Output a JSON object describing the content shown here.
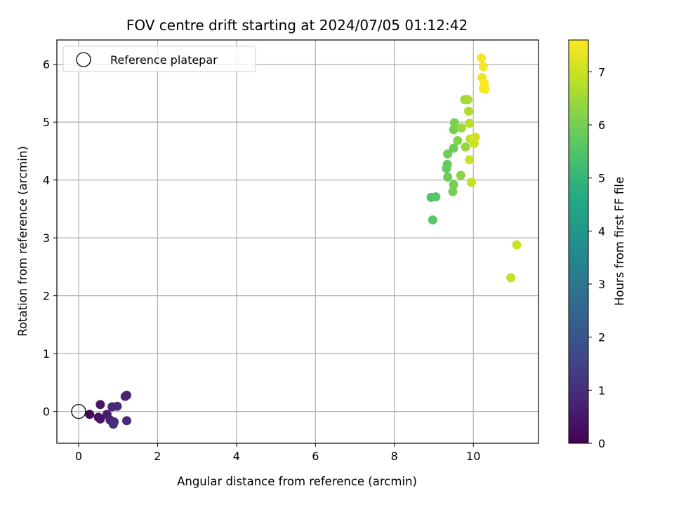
{
  "chart_data": {
    "type": "scatter",
    "title": "FOV centre drift starting at 2024/07/05 01:12:42",
    "xlabel": "Angular distance from reference (arcmin)",
    "ylabel": "Rotation from reference (arcmin)",
    "xlim": [
      -0.55,
      11.65
    ],
    "ylim": [
      -0.55,
      6.42
    ],
    "xticks": [
      0,
      2,
      4,
      6,
      8,
      10
    ],
    "yticks": [
      0,
      1,
      2,
      3,
      4,
      5,
      6
    ],
    "grid": true,
    "legend": {
      "position": "top-left",
      "entries": [
        "Reference platepar"
      ]
    },
    "reference_point": {
      "x": 0,
      "y": 0
    },
    "colorbar": {
      "label": "Hours from first FF file",
      "min": 0,
      "max": 7.6,
      "ticks": [
        0,
        1,
        2,
        3,
        4,
        5,
        6,
        7
      ],
      "colormap": "viridis"
    },
    "points": [
      {
        "x": 0.28,
        "y": -0.05,
        "h": 0.1
      },
      {
        "x": 0.5,
        "y": -0.1,
        "h": 0.3
      },
      {
        "x": 0.55,
        "y": -0.13,
        "h": 0.4
      },
      {
        "x": 0.55,
        "y": 0.12,
        "h": 0.5
      },
      {
        "x": 0.72,
        "y": -0.05,
        "h": 0.6
      },
      {
        "x": 0.8,
        "y": -0.15,
        "h": 0.7
      },
      {
        "x": 0.85,
        "y": 0.08,
        "h": 0.8
      },
      {
        "x": 0.88,
        "y": -0.22,
        "h": 0.9
      },
      {
        "x": 0.9,
        "y": -0.18,
        "h": 1.0
      },
      {
        "x": 0.98,
        "y": 0.09,
        "h": 0.9
      },
      {
        "x": 1.18,
        "y": 0.26,
        "h": 0.8
      },
      {
        "x": 1.22,
        "y": 0.28,
        "h": 0.8
      },
      {
        "x": 1.22,
        "y": -0.16,
        "h": 0.9
      },
      {
        "x": 8.93,
        "y": 3.7,
        "h": 5.5
      },
      {
        "x": 8.97,
        "y": 3.31,
        "h": 5.6
      },
      {
        "x": 9.05,
        "y": 3.71,
        "h": 5.6
      },
      {
        "x": 9.32,
        "y": 4.2,
        "h": 5.8
      },
      {
        "x": 9.34,
        "y": 4.27,
        "h": 5.8
      },
      {
        "x": 9.35,
        "y": 4.45,
        "h": 5.9
      },
      {
        "x": 9.35,
        "y": 4.05,
        "h": 5.9
      },
      {
        "x": 9.48,
        "y": 3.8,
        "h": 6.0
      },
      {
        "x": 9.5,
        "y": 3.92,
        "h": 6.0
      },
      {
        "x": 9.5,
        "y": 4.55,
        "h": 5.9
      },
      {
        "x": 9.5,
        "y": 4.87,
        "h": 6.0
      },
      {
        "x": 9.52,
        "y": 4.99,
        "h": 6.1
      },
      {
        "x": 9.6,
        "y": 4.68,
        "h": 6.2
      },
      {
        "x": 9.68,
        "y": 4.08,
        "h": 6.3
      },
      {
        "x": 9.7,
        "y": 4.9,
        "h": 6.5
      },
      {
        "x": 9.78,
        "y": 5.39,
        "h": 6.5
      },
      {
        "x": 9.8,
        "y": 4.57,
        "h": 6.4
      },
      {
        "x": 9.86,
        "y": 5.39,
        "h": 6.6
      },
      {
        "x": 9.88,
        "y": 5.19,
        "h": 6.7
      },
      {
        "x": 9.9,
        "y": 4.98,
        "h": 6.8
      },
      {
        "x": 9.9,
        "y": 4.35,
        "h": 7.0
      },
      {
        "x": 9.92,
        "y": 4.71,
        "h": 6.8
      },
      {
        "x": 9.95,
        "y": 3.96,
        "h": 6.9
      },
      {
        "x": 10.0,
        "y": 4.72,
        "h": 7.1
      },
      {
        "x": 10.02,
        "y": 4.63,
        "h": 7.0
      },
      {
        "x": 10.05,
        "y": 4.74,
        "h": 7.1
      },
      {
        "x": 10.2,
        "y": 6.11,
        "h": 7.5
      },
      {
        "x": 10.22,
        "y": 5.77,
        "h": 7.4
      },
      {
        "x": 10.25,
        "y": 5.96,
        "h": 7.5
      },
      {
        "x": 10.25,
        "y": 5.58,
        "h": 7.5
      },
      {
        "x": 10.28,
        "y": 5.67,
        "h": 7.6
      },
      {
        "x": 10.3,
        "y": 5.57,
        "h": 7.6
      },
      {
        "x": 10.95,
        "y": 2.31,
        "h": 6.9
      },
      {
        "x": 11.1,
        "y": 2.88,
        "h": 7.0
      }
    ]
  }
}
